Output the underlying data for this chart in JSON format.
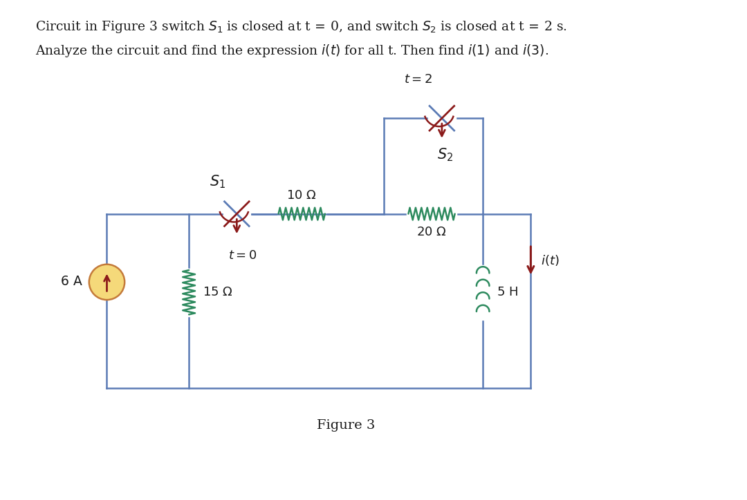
{
  "bg_color": "#ffffff",
  "wire_color": "#5b7bb5",
  "resistor_color": "#2d8a5e",
  "inductor_color": "#2d8a5e",
  "dark_red": "#8b1a1a",
  "text_color": "#1a1a1a",
  "cs_fill": "#f5d97a",
  "cs_edge": "#c47a3a",
  "switch_wire_color": "#5b7bb5",
  "switch_arc_color": "#8b1a1a",
  "figsize": [
    10.8,
    7.24
  ],
  "dpi": 100
}
